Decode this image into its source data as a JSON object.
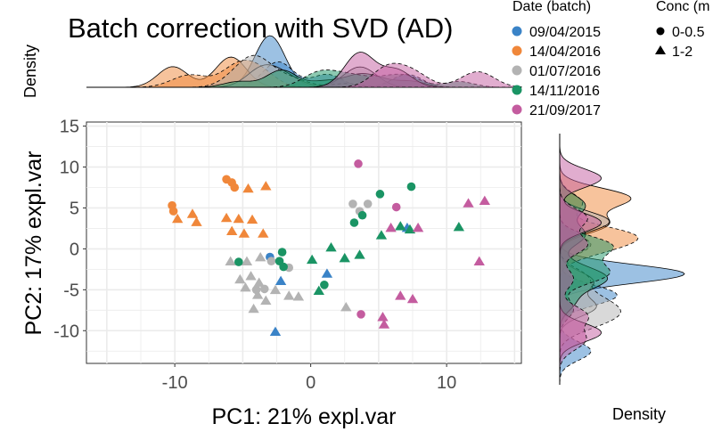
{
  "chart_data": [
    {
      "type": "scatter",
      "title": "Batch correction with SVD (AD)",
      "xlabel": "PC1: 21% expl.var",
      "ylabel": "PC2: 17% expl.var",
      "xlim": [
        -16.5,
        15.5
      ],
      "ylim": [
        -14,
        15.5
      ],
      "x_ticks": [
        -10,
        0,
        10
      ],
      "y_ticks": [
        15,
        10,
        5,
        0,
        -5,
        -10
      ],
      "grid": true,
      "series": [
        {
          "name": "09/04/2015",
          "color": "#3a83c7",
          "points": [
            [
              -3,
              -1
            ],
            [
              -2.2,
              -4
            ],
            [
              -2.6,
              -10.2
            ],
            [
              1.2,
              -3.1
            ],
            [
              7.1,
              2.5
            ]
          ]
        },
        {
          "name": "14/04/2016",
          "color": "#f0873a",
          "points": [
            [
              -10.2,
              5.3
            ],
            [
              -10.1,
              4.6
            ],
            [
              -6.2,
              8.5
            ],
            [
              -5.8,
              8.1
            ],
            [
              -5.6,
              7.5
            ],
            [
              -9.8,
              3.6
            ],
            [
              -8.7,
              4.2
            ],
            [
              -8.4,
              3.2
            ],
            [
              -4.6,
              7.3
            ],
            [
              -3.3,
              7.6
            ],
            [
              -6.2,
              3.7
            ],
            [
              -5.3,
              3.6
            ],
            [
              -4.3,
              3.5
            ],
            [
              -5.8,
              2.1
            ],
            [
              -4.9,
              1.8
            ],
            [
              -3.5,
              1.8
            ]
          ]
        },
        {
          "name": "01/07/2016",
          "color": "#b3b3b3",
          "points": [
            [
              -5.9,
              -1.6
            ],
            [
              -4.7,
              -1.6
            ],
            [
              -3.7,
              -1.1
            ],
            [
              -2.9,
              -1.5
            ],
            [
              -1.6,
              -2.3
            ],
            [
              -5.2,
              -3.8
            ],
            [
              -4.4,
              -3.4
            ],
            [
              -3.9,
              -5.7
            ],
            [
              -3.8,
              -4.2
            ],
            [
              -4.0,
              -5.0
            ],
            [
              -2.6,
              -5.1
            ],
            [
              -1.6,
              -5.8
            ],
            [
              -0.9,
              -5.9
            ],
            [
              -4.8,
              -4.8
            ],
            [
              -3.4,
              -4.9
            ],
            [
              -3.3,
              -6.4
            ],
            [
              -4.2,
              -7.4
            ],
            [
              3.1,
              5.5
            ],
            [
              3.6,
              4.6
            ],
            [
              4.2,
              5.5
            ],
            [
              2.6,
              -7.2
            ]
          ]
        },
        {
          "name": "14/11/2016",
          "color": "#1a9464",
          "points": [
            [
              -5.3,
              -1.6
            ],
            [
              -2.1,
              -0.4
            ],
            [
              -2.3,
              -1.5
            ],
            [
              -2.0,
              -2.2
            ],
            [
              0.1,
              -1.4
            ],
            [
              1.0,
              -4.4
            ],
            [
              0.6,
              -5.2
            ],
            [
              1.5,
              0.1
            ],
            [
              2.5,
              -1.2
            ],
            [
              3.2,
              3.2
            ],
            [
              3.8,
              4.1
            ],
            [
              5.1,
              6.7
            ],
            [
              7.4,
              7.6
            ],
            [
              5.2,
              1.6
            ],
            [
              3.6,
              -0.8
            ],
            [
              6.6,
              2.7
            ],
            [
              7.3,
              2.3
            ],
            [
              10.9,
              2.6
            ]
          ]
        },
        {
          "name": "21/09/2017",
          "color": "#c45c9f",
          "points": [
            [
              3.5,
              10.4
            ],
            [
              6.3,
              5.1
            ],
            [
              7.9,
              2.5
            ],
            [
              5.9,
              2.5
            ],
            [
              11.6,
              5.5
            ],
            [
              12.8,
              5.8
            ],
            [
              12.4,
              -1.6
            ],
            [
              6.6,
              -5.8
            ],
            [
              7.5,
              -6.2
            ],
            [
              3.7,
              -8.0
            ],
            [
              5.3,
              -8.4
            ],
            [
              5.4,
              -9.3
            ]
          ]
        }
      ]
    },
    {
      "type": "area",
      "ylabel": "Density"
    },
    {
      "type": "area",
      "xlabel": "Density"
    }
  ],
  "legend": {
    "title": "Date (batch)",
    "items": [
      {
        "label": "09/04/2015",
        "color": "#3a83c7"
      },
      {
        "label": "14/04/2016",
        "color": "#f0873a"
      },
      {
        "label": "01/07/2016",
        "color": "#b3b3b3"
      },
      {
        "label": "14/11/2016",
        "color": "#1a9464"
      },
      {
        "label": "21/09/2017",
        "color": "#c45c9f"
      }
    ]
  },
  "legend_shape": {
    "title": "Conc (m",
    "items": [
      {
        "label": "0-0.5",
        "shape": "circle"
      },
      {
        "label": "1-2",
        "shape": "triangle"
      }
    ]
  }
}
